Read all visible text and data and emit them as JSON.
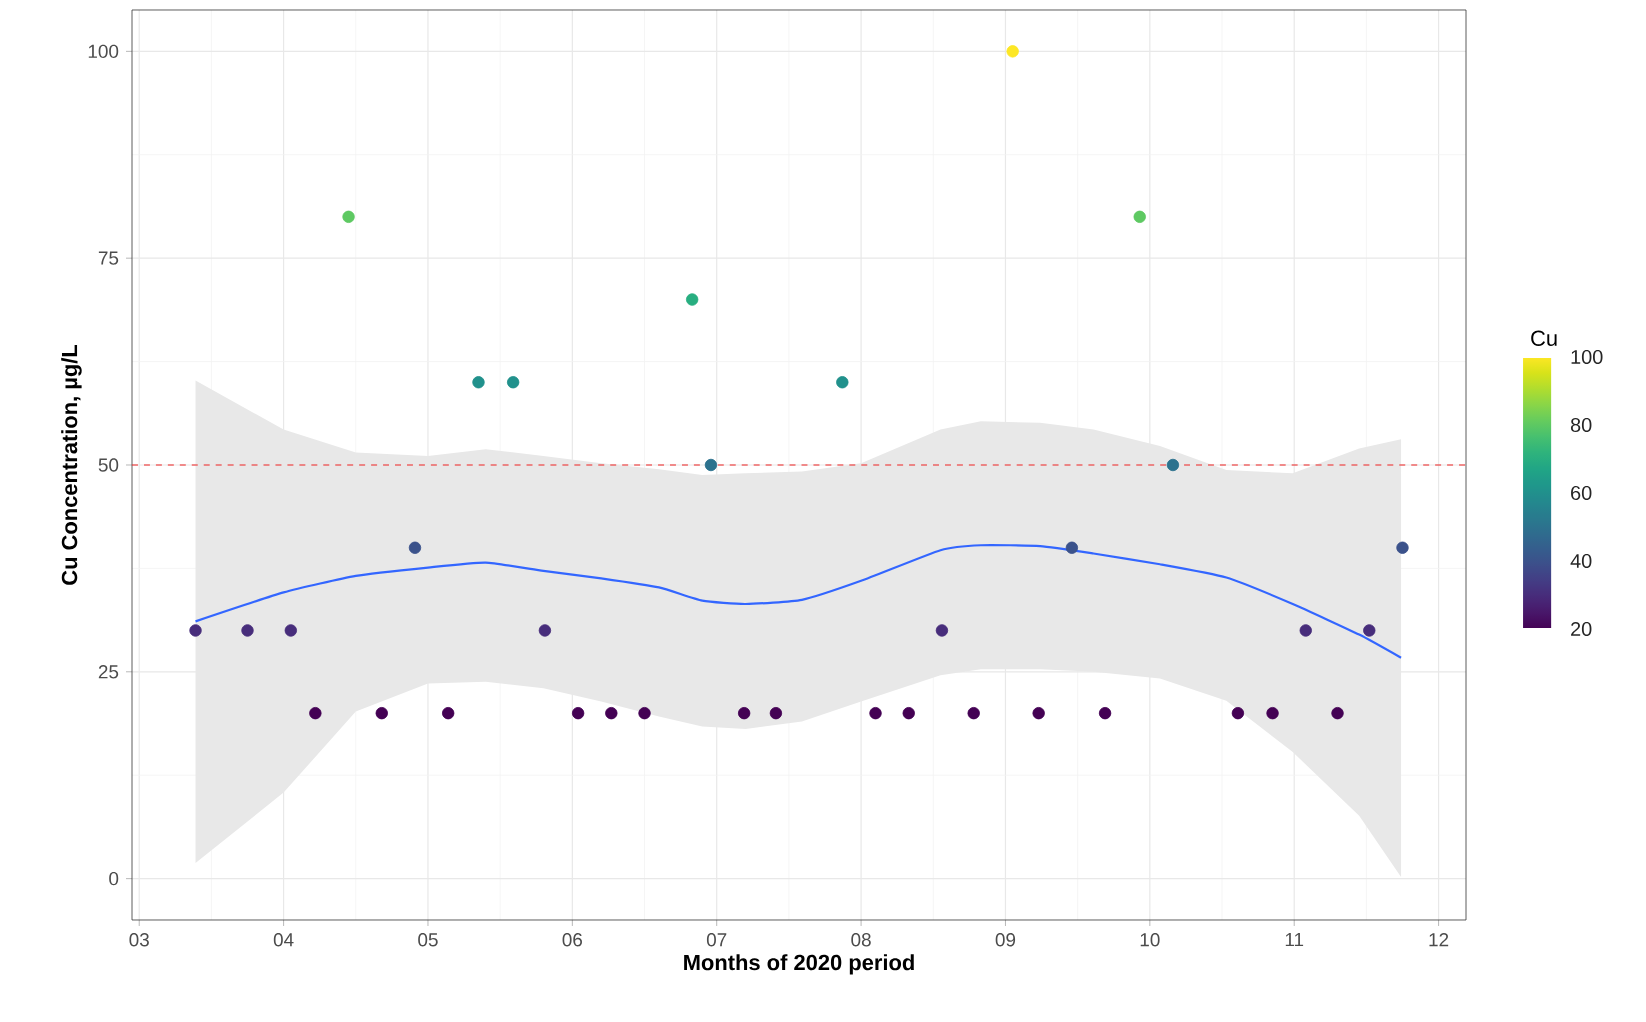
{
  "chart_data": {
    "type": "scatter",
    "xlabel": "Months of 2020 period",
    "ylabel": "Cu Concentration, µg/L",
    "clabel": "Cu",
    "xlim": [
      2.95,
      12.19
    ],
    "ylim": [
      -5,
      105
    ],
    "xticks": [
      {
        "value": 3,
        "label": "03"
      },
      {
        "value": 4,
        "label": "04"
      },
      {
        "value": 5,
        "label": "05"
      },
      {
        "value": 6,
        "label": "06"
      },
      {
        "value": 7,
        "label": "07"
      },
      {
        "value": 8,
        "label": "08"
      },
      {
        "value": 9,
        "label": "09"
      },
      {
        "value": 10,
        "label": "10"
      },
      {
        "value": 11,
        "label": "11"
      },
      {
        "value": 12,
        "label": "12"
      }
    ],
    "yticks": [
      0,
      25,
      50,
      75,
      100
    ],
    "clim": [
      20,
      100
    ],
    "cticks": [
      20,
      40,
      60,
      80,
      100
    ],
    "grid": true,
    "ref_lines": [
      {
        "axis": "y",
        "value": 50,
        "color": "#ee2222",
        "line_style": "dashed"
      }
    ],
    "series": [
      {
        "marker": "circle",
        "colors": [
          "#472d7b",
          "#472d7b",
          "#472d7b",
          "#440154",
          "#5ec962",
          "#440154",
          "#3b528b",
          "#440154",
          "#21918c",
          "#21918c",
          "#472d7b",
          "#440154",
          "#440154",
          "#440154",
          "#28ae80",
          "#2c728e",
          "#440154",
          "#440154",
          "#21918c",
          "#440154",
          "#440154",
          "#472d7b",
          "#440154",
          "#fde725",
          "#440154",
          "#3b528b",
          "#440154",
          "#5ec962",
          "#2c728e",
          "#440154",
          "#440154",
          "#472d7b",
          "#440154",
          "#472d7b",
          "#3b528b"
        ],
        "x": [
          3.39,
          3.75,
          4.05,
          4.22,
          4.45,
          4.68,
          4.91,
          5.14,
          5.35,
          5.59,
          5.81,
          6.04,
          6.27,
          6.5,
          6.83,
          6.96,
          7.19,
          7.41,
          7.87,
          8.1,
          8.33,
          8.56,
          8.78,
          9.05,
          9.23,
          9.46,
          9.69,
          9.93,
          10.16,
          10.61,
          10.85,
          11.08,
          11.3,
          11.52,
          11.75
        ],
        "values": [
          30,
          30,
          30,
          20,
          80,
          20,
          40,
          20,
          60,
          60,
          30,
          20,
          20,
          20,
          70,
          50,
          20,
          20,
          60,
          20,
          20,
          30,
          20,
          100,
          20,
          40,
          20,
          80,
          50,
          20,
          20,
          30,
          20,
          30,
          40
        ],
        "cvalues": [
          30,
          30,
          30,
          20,
          80,
          20,
          40,
          20,
          60,
          60,
          30,
          20,
          20,
          20,
          70,
          50,
          20,
          20,
          60,
          20,
          20,
          30,
          20,
          100,
          20,
          40,
          20,
          80,
          50,
          20,
          20,
          30,
          20,
          30,
          40
        ]
      },
      {
        "type": "line",
        "color": "#3366ff",
        "x": [
          3.39,
          4.0,
          4.5,
          5.0,
          5.4,
          5.8,
          6.2,
          6.6,
          6.9,
          7.2,
          7.59,
          8.0,
          8.55,
          8.83,
          9.24,
          9.61,
          10.07,
          10.53,
          10.99,
          11.45,
          11.74
        ],
        "values": [
          31.1,
          34.6,
          36.6,
          37.6,
          38.2,
          37.2,
          36.3,
          35.2,
          33.6,
          33.2,
          33.7,
          36.0,
          39.7,
          40.3,
          40.2,
          39.3,
          38.0,
          36.4,
          33.2,
          29.5,
          26.7
        ],
        "lower": [
          1.9,
          10.4,
          20.2,
          23.6,
          23.8,
          23.0,
          21.4,
          19.6,
          18.4,
          18.1,
          19.0,
          21.4,
          24.6,
          25.3,
          25.3,
          25.0,
          24.2,
          21.5,
          15.3,
          7.6,
          0.2
        ],
        "upper": [
          60.2,
          54.3,
          51.5,
          51.1,
          51.9,
          51.1,
          50.2,
          49.5,
          48.8,
          49.0,
          49.2,
          50.2,
          54.3,
          55.3,
          55.1,
          54.3,
          52.3,
          49.4,
          49.0,
          52.0,
          53.1
        ]
      }
    ]
  }
}
